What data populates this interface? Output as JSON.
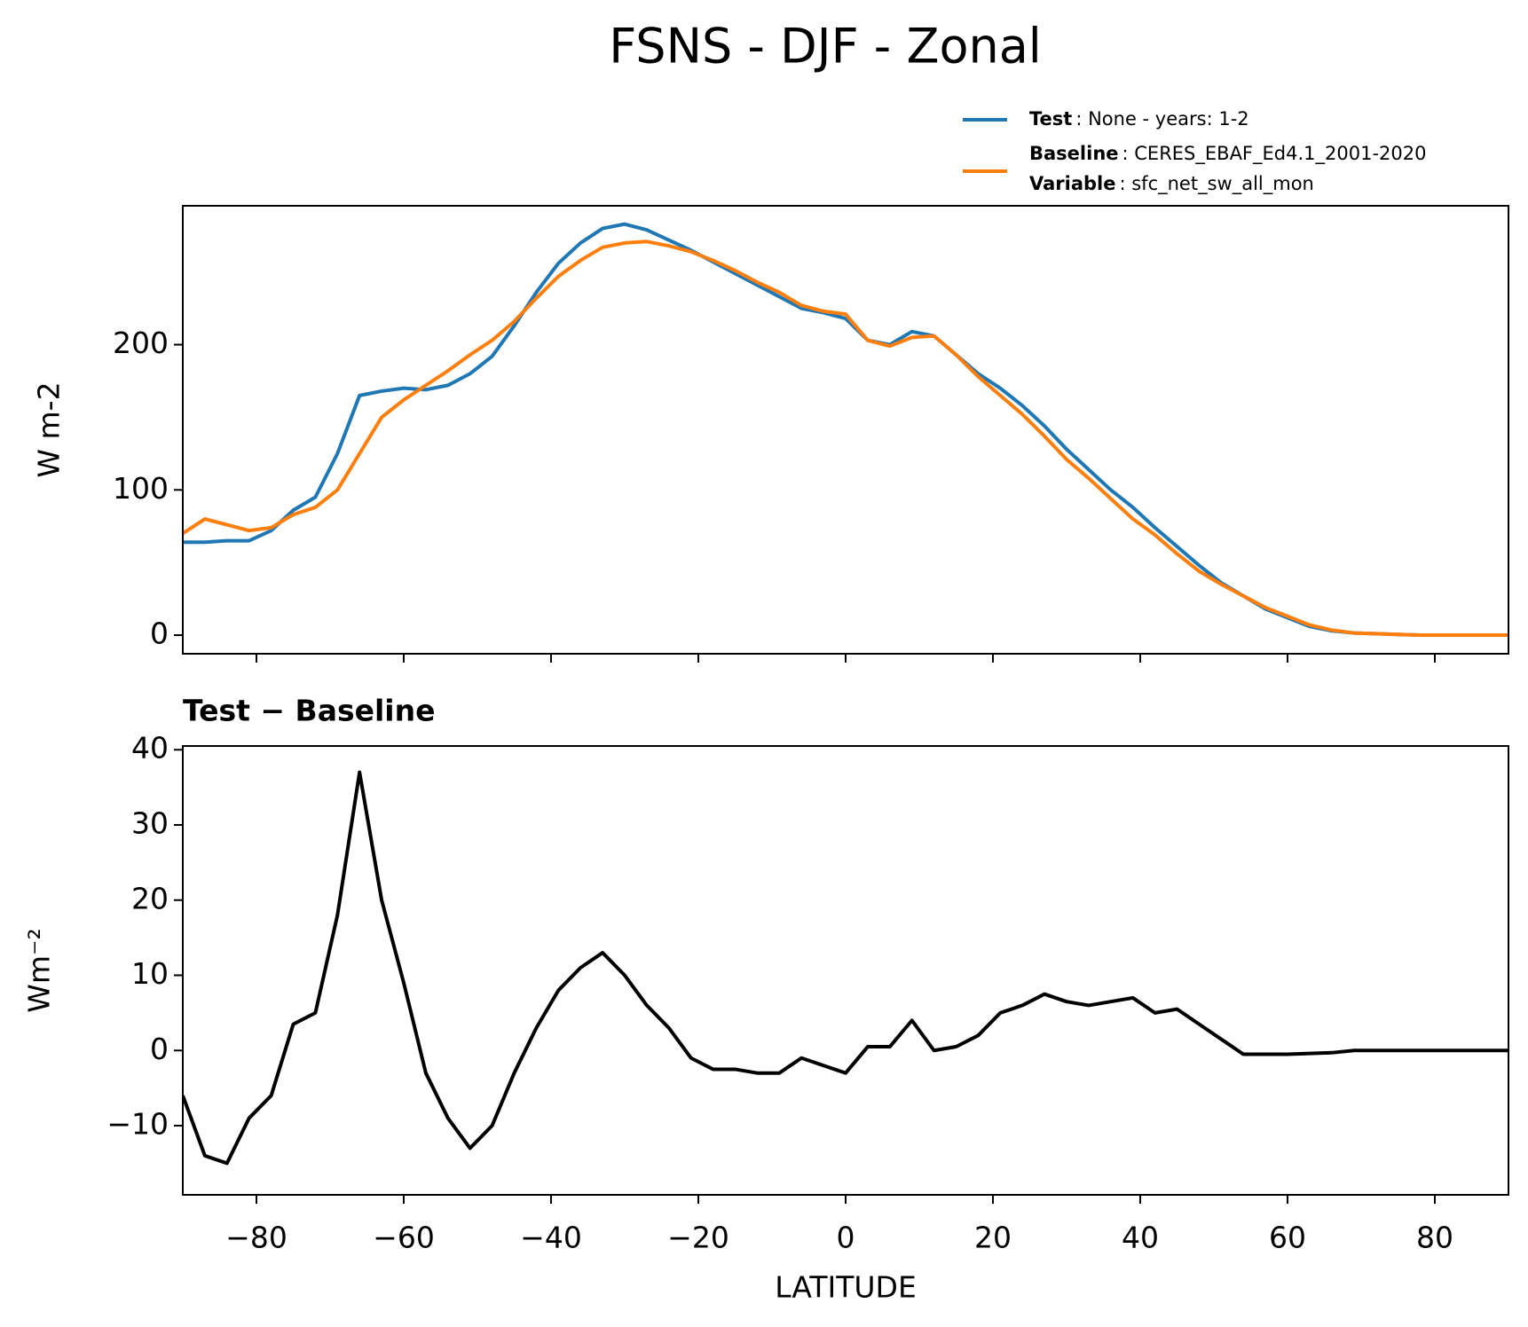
{
  "title": "FSNS - DJF - Zonal",
  "chart_data": [
    {
      "type": "line",
      "ylabel": "W m-2",
      "x": [
        -90,
        -87,
        -84,
        -81,
        -78,
        -75,
        -72,
        -69,
        -66,
        -63,
        -60,
        -57,
        -54,
        -51,
        -48,
        -45,
        -42,
        -39,
        -36,
        -33,
        -30,
        -27,
        -24,
        -21,
        -18,
        -15,
        -12,
        -9,
        -6,
        -3,
        0,
        3,
        6,
        9,
        12,
        15,
        18,
        21,
        24,
        27,
        30,
        33,
        36,
        39,
        42,
        45,
        48,
        51,
        54,
        57,
        60,
        63,
        66,
        69,
        72,
        75,
        78,
        81,
        84,
        87,
        90
      ],
      "series": [
        {
          "name": "Test",
          "legend_text": ": None - years: 1-2",
          "color": "#1f77b4",
          "values": [
            64,
            64,
            65,
            65,
            72,
            86,
            95,
            125,
            165,
            168,
            170,
            169,
            172,
            180,
            192,
            213,
            236,
            256,
            270,
            280,
            283,
            279,
            272,
            265,
            257,
            249,
            241,
            233,
            225,
            222,
            218,
            203,
            200,
            209,
            206,
            193,
            180,
            170,
            158,
            144,
            128,
            114,
            100,
            88,
            74,
            61,
            48,
            36,
            27,
            18,
            12,
            6,
            3,
            1.5,
            1,
            0.5,
            0,
            0,
            0,
            0,
            0
          ]
        },
        {
          "name": "Baseline",
          "legend_text": ": CERES_EBAF_Ed4.1_2001-2020",
          "legend_extra": {
            "key": "Variable",
            "text": ": sfc_net_sw_all_mon"
          },
          "color": "#ff7f0e",
          "values": [
            70,
            80,
            76,
            72,
            74,
            83,
            88,
            100,
            125,
            150,
            162,
            172,
            182,
            193,
            203,
            216,
            232,
            247,
            258,
            267,
            270,
            271,
            268,
            264,
            258,
            251,
            243,
            236,
            227,
            223,
            221,
            203,
            199,
            205,
            206,
            193,
            178,
            165,
            152,
            137,
            121,
            108,
            94,
            80,
            69,
            56,
            44,
            35,
            27,
            19,
            13,
            7,
            3.5,
            1.5,
            1,
            0.5,
            0,
            0,
            0,
            0,
            0
          ]
        }
      ],
      "xlim": [
        -90,
        90
      ],
      "xticks": [
        -80,
        -60,
        -40,
        -20,
        0,
        20,
        40,
        60,
        80
      ],
      "ylim": [
        -12.8,
        295.6
      ],
      "yticks": [
        0,
        100,
        200
      ]
    },
    {
      "type": "line",
      "title": "Test − Baseline",
      "xlabel": "LATITUDE",
      "ylabel": "Wm⁻²",
      "x": [
        -90,
        -87,
        -84,
        -81,
        -78,
        -75,
        -72,
        -69,
        -66,
        -63,
        -60,
        -57,
        -54,
        -51,
        -48,
        -45,
        -42,
        -39,
        -36,
        -33,
        -30,
        -27,
        -24,
        -21,
        -18,
        -15,
        -12,
        -9,
        -6,
        -3,
        0,
        3,
        6,
        9,
        12,
        15,
        18,
        21,
        24,
        27,
        30,
        33,
        36,
        39,
        42,
        45,
        48,
        51,
        54,
        57,
        60,
        63,
        66,
        69,
        72,
        75,
        78,
        81,
        84,
        87,
        90
      ],
      "series": [
        {
          "color": "#000000",
          "values": [
            -6,
            -14,
            -15,
            -9,
            -6,
            3.5,
            5,
            18,
            37,
            20,
            9,
            -3,
            -9,
            -13,
            -10,
            -3,
            3,
            8,
            11,
            13,
            10,
            6,
            3,
            -1,
            -2.5,
            -2.5,
            -3,
            -3,
            -1,
            -2,
            -3,
            0.5,
            0.5,
            4,
            0,
            0.5,
            2,
            5,
            6,
            7.5,
            6.5,
            6,
            6.5,
            7,
            5,
            5.5,
            3.5,
            1.5,
            -0.5,
            -0.5,
            -0.5,
            -0.4,
            -0.3,
            0,
            0,
            0,
            0,
            0,
            0,
            0,
            0
          ]
        }
      ],
      "xlim": [
        -90,
        90
      ],
      "xticks": [
        {
          "value": -80,
          "label": "−80"
        },
        {
          "value": -60,
          "label": "−60"
        },
        {
          "value": -40,
          "label": "−40"
        },
        {
          "value": -20,
          "label": "−20"
        },
        0,
        20,
        40,
        60,
        80
      ],
      "ylim": [
        -19.2,
        40.5
      ],
      "yticks": [
        {
          "value": -10,
          "label": "−10"
        },
        0,
        10,
        20,
        30,
        40
      ]
    }
  ]
}
